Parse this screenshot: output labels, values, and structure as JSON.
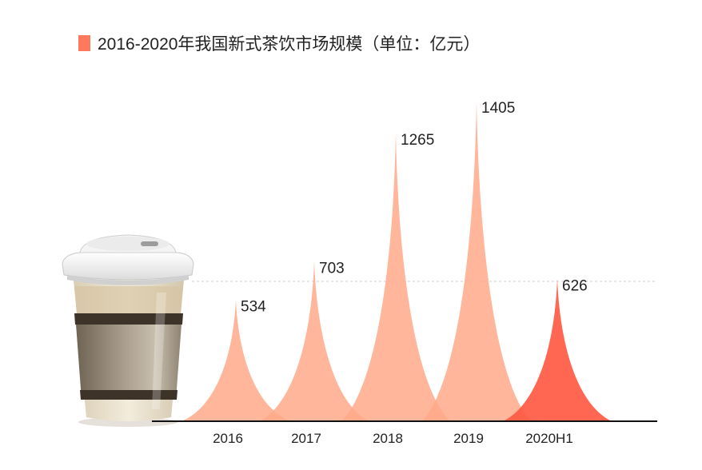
{
  "chart_data": {
    "type": "area",
    "title": "2016-2020年我国新式茶饮市场规模（单位：亿元）",
    "categories": [
      "2016",
      "2017",
      "2018",
      "2019",
      "2020H1"
    ],
    "values": [
      534,
      703,
      1265,
      1405,
      626
    ],
    "value_labels": [
      "534",
      "703",
      "1265",
      "1405",
      "626"
    ],
    "ylim": [
      0,
      1405
    ],
    "grid": false,
    "legend": "top-left",
    "colors": {
      "legend_marker": "#ff7a5c",
      "normal": "#ffa98a",
      "highlight": "#ff5a44",
      "axis": "#111111",
      "reference_line": "#cccccc"
    }
  },
  "illustration": {
    "icon": "coffee-cup-icon"
  }
}
